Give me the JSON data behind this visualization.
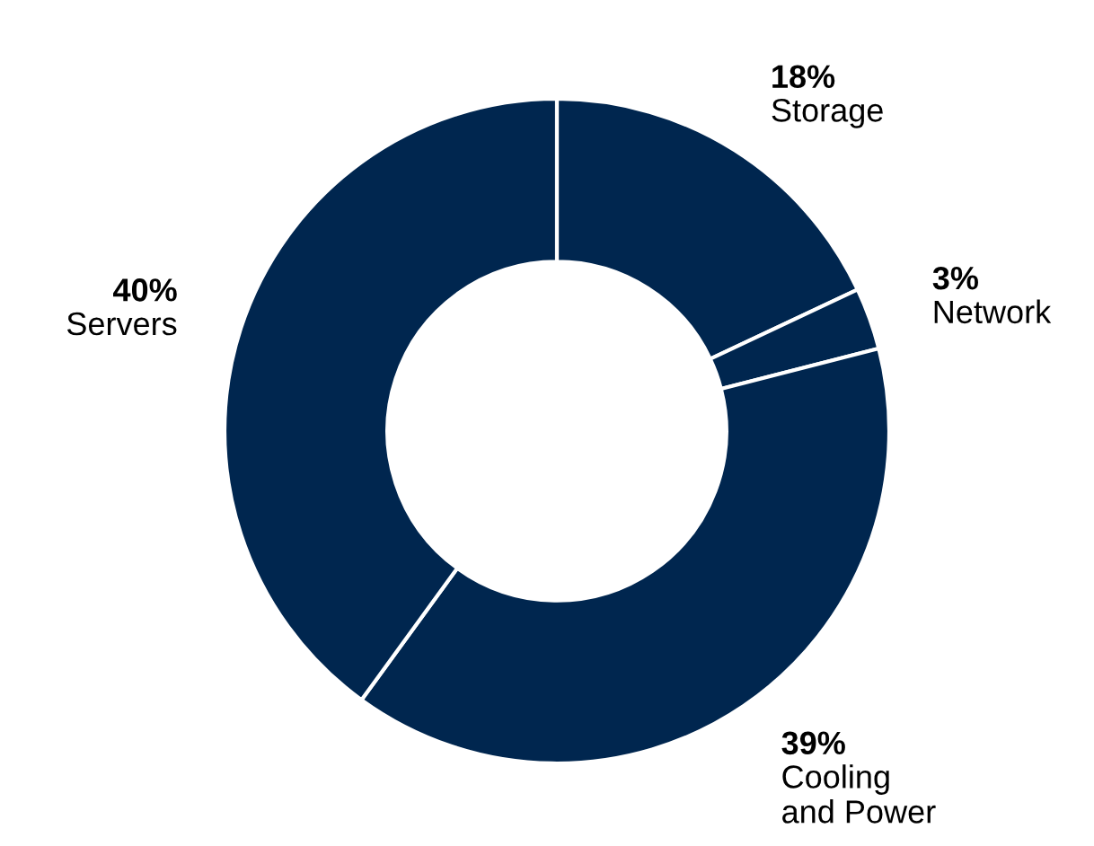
{
  "chart_data": {
    "type": "donut",
    "categories": [
      "Storage",
      "Network",
      "Cooling\nand Power",
      "Servers"
    ],
    "values": [
      18,
      3,
      39,
      40
    ],
    "value_labels": [
      "18%",
      "3%",
      "39%",
      "40%"
    ],
    "colors": [
      "#00264f",
      "#00264f",
      "#00264f",
      "#00264f"
    ],
    "legend": false
  }
}
